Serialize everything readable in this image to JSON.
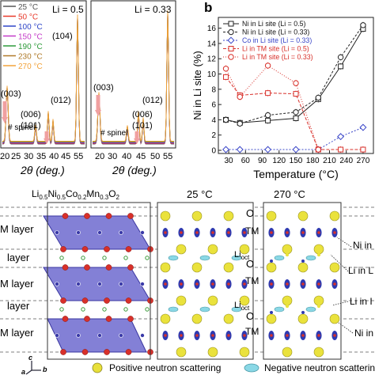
{
  "panel_b_label": "b",
  "xrd": {
    "legend": [
      "25 °C",
      "50 °C",
      "100 °C",
      "150 °C",
      "190 °C",
      "230 °C",
      "270 °C"
    ],
    "legend_colors": [
      "#555555",
      "#e8392b",
      "#2f45c8",
      "#c43bc8",
      "#2e9b3a",
      "#b07b2a",
      "#f2a23a"
    ],
    "left": {
      "li_label": "Li = 0.5",
      "peak_104": "(104)",
      "peak_003": "(003)",
      "peak_006": "(006)",
      "peak_101": "(101)",
      "peak_012": "(012)",
      "spinel": "# spinel",
      "ticks": [
        "20",
        "25",
        "30",
        "35",
        "40",
        "45",
        "50",
        "55"
      ]
    },
    "right": {
      "li_label": "Li = 0.33",
      "peak_104": "(104)",
      "peak_003": "(003)",
      "peak_006": "(006)",
      "peak_101": "(101)",
      "peak_012": "(012)",
      "spinel": "# spinel",
      "ticks": [
        "20",
        "25",
        "30",
        "35",
        "40",
        "45",
        "50",
        "55"
      ]
    },
    "xlabel": "2θ (deg.)",
    "left_tick_prefix": "2"
  },
  "chart_data": {
    "type": "line",
    "x": [
      25,
      50,
      100,
      150,
      190,
      230,
      270
    ],
    "xticks": [
      "30",
      "60",
      "90",
      "120",
      "150",
      "180",
      "210",
      "240",
      "270"
    ],
    "yticks": [
      "0",
      "2",
      "4",
      "6",
      "8",
      "10",
      "12",
      "14",
      "16"
    ],
    "xlim": [
      20,
      280
    ],
    "ylim": [
      0,
      17
    ],
    "xlabel": "Temperature (°C)",
    "ylabel": "Ni in Li site (%)",
    "legend_position": "top-left",
    "series": [
      {
        "name": "Ni in Li site (Li = 0.5)",
        "color": "#222222",
        "dash": "0",
        "marker": "square",
        "x": [
          25,
          50,
          100,
          150,
          190,
          230,
          270
        ],
        "y": [
          4.0,
          3.6,
          3.9,
          4.2,
          6.7,
          11.0,
          15.9
        ]
      },
      {
        "name": "Ni in Li site (Li = 0.33)",
        "color": "#222222",
        "dash": "3,2",
        "marker": "circle",
        "x": [
          25,
          50,
          100,
          150,
          190,
          230,
          270
        ],
        "y": [
          4.0,
          3.5,
          4.6,
          5.0,
          6.9,
          12.2,
          16.4
        ]
      },
      {
        "name": "Co in Li site (Li = 0.33)",
        "color": "#3a46c8",
        "dash": "2,2",
        "marker": "diamond",
        "x": [
          25,
          50,
          100,
          150,
          190,
          230,
          270
        ],
        "y": [
          0.1,
          0.1,
          0.1,
          0.1,
          0.1,
          1.8,
          3.0
        ]
      },
      {
        "name": "Li in TM site (Li = 0.5)",
        "color": "#d8302a",
        "dash": "4,2",
        "marker": "square",
        "x": [
          25,
          50,
          100,
          150,
          190,
          230,
          270
        ],
        "y": [
          9.6,
          7.2,
          7.5,
          7.4,
          0.1,
          0.1,
          0.1
        ]
      },
      {
        "name": "Li in TM site (Li = 0.33)",
        "color": "#d8302a",
        "dash": "1,2",
        "marker": "circle",
        "x": [
          25,
          50,
          100,
          150,
          190
        ],
        "y": [
          10.7,
          7.0,
          11.1,
          8.8,
          0.1
        ]
      }
    ]
  },
  "structure": {
    "formula": "Li0.5Ni0.5Co0.2Mn0.3O2",
    "layer_labels": [
      "M layer",
      "layer",
      "M layer",
      "layer",
      "M layer"
    ],
    "axis_c": "c",
    "axis_a": "a",
    "axis_b": "b"
  },
  "maps": {
    "title_25": "25 °C",
    "title_270": "270 °C",
    "o_label": "O",
    "tm_label": "TM",
    "li_oct": "Li",
    "li_oct_sub": "oct",
    "right_labels": [
      "Ni in",
      "Li in L",
      "Li in I",
      "Ni in"
    ]
  },
  "footer": {
    "positive": "Positive neutron scattering",
    "negative": "Negative neutron scattering"
  }
}
